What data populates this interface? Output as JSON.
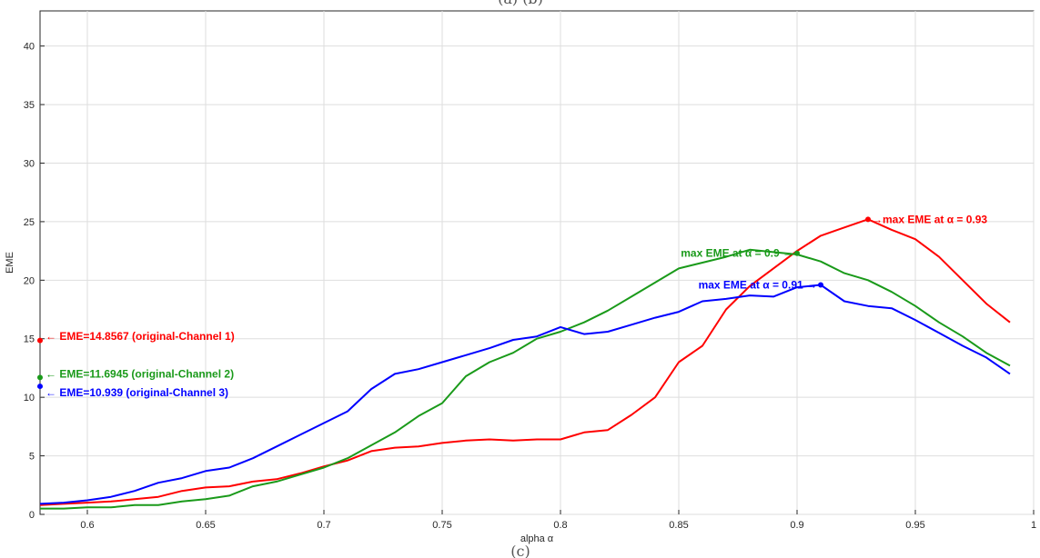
{
  "chart_data": {
    "type": "line",
    "title": "",
    "xlabel": "alpha α",
    "ylabel": "EME",
    "xlim": [
      0.58,
      1.0
    ],
    "ylim": [
      0,
      43
    ],
    "grid": true,
    "xticks": [
      "0.6",
      "0.65",
      "0.7",
      "0.75",
      "0.8",
      "0.85",
      "0.9",
      "0.95",
      "1"
    ],
    "xtick_values": [
      0.6,
      0.65,
      0.7,
      0.75,
      0.8,
      0.85,
      0.9,
      0.95,
      1.0
    ],
    "yticks": [
      "0",
      "5",
      "10",
      "15",
      "20",
      "25",
      "30",
      "35",
      "40"
    ],
    "ytick_values": [
      0,
      5,
      10,
      15,
      20,
      25,
      30,
      35,
      40
    ],
    "series": [
      {
        "color": "#ff0000",
        "x": [
          0.58,
          0.59,
          0.6,
          0.61,
          0.62,
          0.63,
          0.64,
          0.65,
          0.66,
          0.67,
          0.68,
          0.69,
          0.7,
          0.71,
          0.72,
          0.73,
          0.74,
          0.75,
          0.76,
          0.77,
          0.78,
          0.79,
          0.8,
          0.81,
          0.82,
          0.83,
          0.84,
          0.85,
          0.86,
          0.87,
          0.88,
          0.89,
          0.9,
          0.91,
          0.92,
          0.93,
          0.94,
          0.95,
          0.96,
          0.97,
          0.98,
          0.99
        ],
        "y": [
          0.8,
          0.9,
          1.0,
          1.1,
          1.3,
          1.5,
          2.0,
          2.3,
          2.4,
          2.8,
          3.0,
          3.5,
          4.1,
          4.6,
          5.4,
          5.7,
          5.8,
          6.1,
          6.3,
          6.4,
          6.3,
          6.4,
          6.4,
          7.0,
          7.2,
          8.5,
          10.0,
          13.0,
          14.4,
          17.5,
          19.5,
          21.0,
          22.5,
          23.8,
          24.5,
          25.2,
          24.3,
          23.5,
          22.0,
          20.0,
          18.0,
          16.4
        ]
      },
      {
        "color": "#1a9a1a",
        "x": [
          0.58,
          0.59,
          0.6,
          0.61,
          0.62,
          0.63,
          0.64,
          0.65,
          0.66,
          0.67,
          0.68,
          0.69,
          0.7,
          0.71,
          0.72,
          0.73,
          0.74,
          0.75,
          0.76,
          0.77,
          0.78,
          0.79,
          0.8,
          0.81,
          0.82,
          0.83,
          0.84,
          0.85,
          0.86,
          0.87,
          0.88,
          0.89,
          0.9,
          0.91,
          0.92,
          0.93,
          0.94,
          0.95,
          0.96,
          0.97,
          0.98,
          0.99
        ],
        "y": [
          0.5,
          0.5,
          0.6,
          0.6,
          0.8,
          0.8,
          1.1,
          1.3,
          1.6,
          2.4,
          2.8,
          3.4,
          4.0,
          4.8,
          5.9,
          7.0,
          8.4,
          9.5,
          11.8,
          13.0,
          13.8,
          15.0,
          15.6,
          16.4,
          17.4,
          18.6,
          19.8,
          21.0,
          21.5,
          22.0,
          22.6,
          22.4,
          22.2,
          21.6,
          20.6,
          20.0,
          19.0,
          17.8,
          16.4,
          15.2,
          13.8,
          12.7
        ]
      },
      {
        "color": "#0000ff",
        "x": [
          0.58,
          0.59,
          0.6,
          0.61,
          0.62,
          0.63,
          0.64,
          0.65,
          0.66,
          0.67,
          0.68,
          0.69,
          0.7,
          0.71,
          0.72,
          0.73,
          0.74,
          0.75,
          0.76,
          0.77,
          0.78,
          0.79,
          0.8,
          0.81,
          0.82,
          0.83,
          0.84,
          0.85,
          0.86,
          0.87,
          0.88,
          0.89,
          0.9,
          0.91,
          0.92,
          0.93,
          0.94,
          0.95,
          0.96,
          0.97,
          0.98,
          0.99
        ],
        "y": [
          0.9,
          1.0,
          1.2,
          1.5,
          2.0,
          2.7,
          3.1,
          3.7,
          4.0,
          4.8,
          5.8,
          6.8,
          7.8,
          8.8,
          10.7,
          12.0,
          12.4,
          13.0,
          13.6,
          14.2,
          14.9,
          15.2,
          16.0,
          15.4,
          15.6,
          16.2,
          16.8,
          17.3,
          18.2,
          18.4,
          18.7,
          18.6,
          19.4,
          19.6,
          18.2,
          17.8,
          17.6,
          16.6,
          15.5,
          14.4,
          13.4,
          12.0
        ]
      }
    ],
    "markers": [
      {
        "color": "#ff0000",
        "x": 0.58,
        "y": 14.8567
      },
      {
        "color": "#1a9a1a",
        "x": 0.58,
        "y": 11.6945
      },
      {
        "color": "#0000ff",
        "x": 0.58,
        "y": 10.939
      },
      {
        "color": "#ff0000",
        "x": 0.93,
        "y": 25.2
      },
      {
        "color": "#1a9a1a",
        "x": 0.9,
        "y": 22.3
      },
      {
        "color": "#0000ff",
        "x": 0.91,
        "y": 19.6
      }
    ],
    "annotations": [
      {
        "text": "← EME=14.8567 (original-Channel 1)",
        "color": "#ff0000",
        "x": 0.58,
        "y": 15.2,
        "anchor": "start",
        "dx": 6
      },
      {
        "text": "← EME=11.6945 (original-Channel 2)",
        "color": "#1a9a1a",
        "x": 0.58,
        "y": 12.0,
        "anchor": "start",
        "dx": 6
      },
      {
        "text": "← EME=10.939 (original-Channel 3)",
        "color": "#0000ff",
        "x": 0.58,
        "y": 10.4,
        "anchor": "start",
        "dx": 6
      },
      {
        "text": "→max EME at α = 0.93",
        "color": "#ff0000",
        "x": 0.93,
        "y": 25.2,
        "anchor": "start",
        "dx": 4
      },
      {
        "text": "max EME at α = 0.9 →",
        "color": "#1a9a1a",
        "x": 0.9,
        "y": 22.3,
        "anchor": "end",
        "dx": -4
      },
      {
        "text": "max EME at α = 0.91 →",
        "color": "#0000ff",
        "x": 0.91,
        "y": 19.6,
        "anchor": "end",
        "dx": -4
      }
    ]
  },
  "top_caption": "(a)                                                            (b)",
  "bottom_caption": "(c)"
}
